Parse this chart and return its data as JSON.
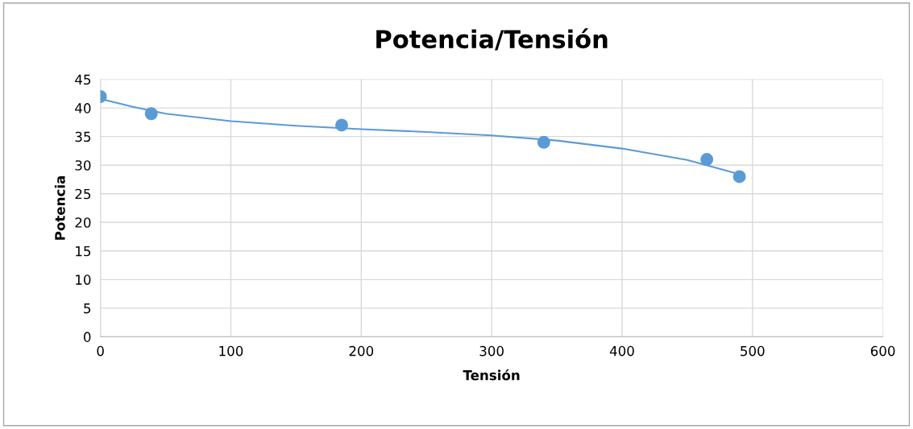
{
  "chart_data": {
    "type": "scatter",
    "title": "Potencia/Tensión",
    "xlabel": "Tensión",
    "ylabel": "Potencia",
    "series": [
      {
        "color": "#5b9bd5",
        "x": [
          0,
          39,
          185,
          340,
          465,
          490
        ],
        "values": [
          42,
          39,
          37,
          34,
          31,
          28
        ],
        "marker": "circle"
      },
      {
        "type": "line",
        "color": "#5b9bd5",
        "x": [
          0,
          25,
          50,
          100,
          150,
          200,
          250,
          300,
          350,
          400,
          450,
          490
        ],
        "values": [
          41.6,
          40.2,
          39.0,
          37.7,
          36.9,
          36.3,
          35.8,
          35.2,
          34.3,
          32.9,
          30.9,
          28.4
        ],
        "marker": "none",
        "line_style": "solid"
      }
    ],
    "xlim": [
      0,
      600
    ],
    "xticks": [
      0,
      100,
      200,
      300,
      400,
      500,
      600
    ],
    "ylim": [
      0,
      45
    ],
    "yticks": [
      0,
      5,
      10,
      15,
      20,
      25,
      30,
      35,
      40,
      45
    ],
    "grid": true
  }
}
